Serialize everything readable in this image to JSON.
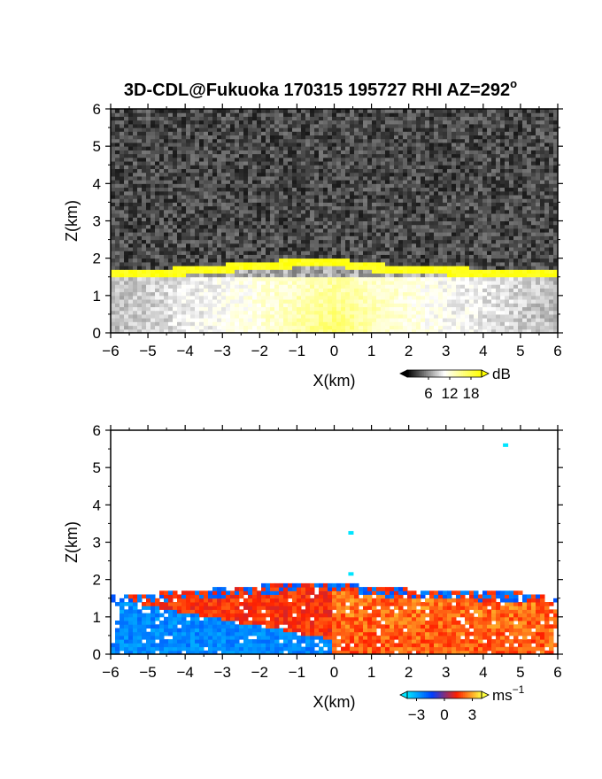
{
  "figure": {
    "title": "3D-CDL@Fukuoka 170315 195727 RHI AZ=292",
    "title_sup": "o"
  },
  "chart_data": [
    {
      "type": "heatmap",
      "name": "backscatter-snr",
      "xlabel": "X(km)",
      "ylabel": "Z(km)",
      "xlim": [
        -6,
        6
      ],
      "ylim": [
        0,
        6
      ],
      "xticks": [
        "-6",
        "-5",
        "-4",
        "-3",
        "-2",
        "-1",
        "0",
        "1",
        "2",
        "3",
        "4",
        "5",
        "6"
      ],
      "yticks": [
        "0",
        "1",
        "2",
        "3",
        "4",
        "5",
        "6"
      ],
      "colorbar": {
        "unit": "dB",
        "ticks": [
          "6",
          "12",
          "18"
        ],
        "tick_values": [
          6,
          12,
          18
        ],
        "range": [
          0,
          21
        ],
        "colors": [
          "#000000",
          "#ffffff",
          "#ffff00"
        ]
      },
      "features": {
        "noise_floor_db": 3,
        "cloud_base_km": [
          [
            -6,
            1.55
          ],
          [
            -5,
            1.58
          ],
          [
            -4,
            1.65
          ],
          [
            -3,
            1.72
          ],
          [
            -2,
            1.8
          ],
          [
            -1,
            1.86
          ],
          [
            0,
            1.9
          ],
          [
            1,
            1.75
          ],
          [
            2,
            1.7
          ],
          [
            3,
            1.65
          ],
          [
            4,
            1.62
          ],
          [
            5,
            1.6
          ],
          [
            6,
            1.58
          ]
        ],
        "cloud_base_db": 20,
        "boundary_layer_top_km": 1.5,
        "boundary_layer_db": 13
      }
    },
    {
      "type": "heatmap",
      "name": "doppler-velocity",
      "xlabel": "X(km)",
      "ylabel": "Z(km)",
      "xlim": [
        -6,
        6
      ],
      "ylim": [
        0,
        6
      ],
      "xticks": [
        "-6",
        "-5",
        "-4",
        "-3",
        "-2",
        "-1",
        "0",
        "1",
        "2",
        "3",
        "4",
        "5",
        "6"
      ],
      "yticks": [
        "0",
        "1",
        "2",
        "3",
        "4",
        "5",
        "6"
      ],
      "colorbar": {
        "unit": "ms",
        "unit_sup": "−1",
        "ticks": [
          "−3",
          "0",
          "3"
        ],
        "tick_values": [
          -3,
          0,
          3
        ],
        "range": [
          -4,
          4
        ],
        "colors": [
          "#00e5ff",
          "#0040ff",
          "#ff2000",
          "#ffff40"
        ]
      },
      "features": {
        "left_lower_velocity": -2.5,
        "left_upper_velocity": 1.5,
        "right_velocity": 2.0,
        "top_edge_velocity": -2.0,
        "isolated_points": [
          [
            0.45,
            3.25,
            -4.0
          ],
          [
            0.45,
            2.15,
            -4.0
          ],
          [
            4.6,
            5.6,
            -4.0
          ]
        ]
      }
    }
  ]
}
